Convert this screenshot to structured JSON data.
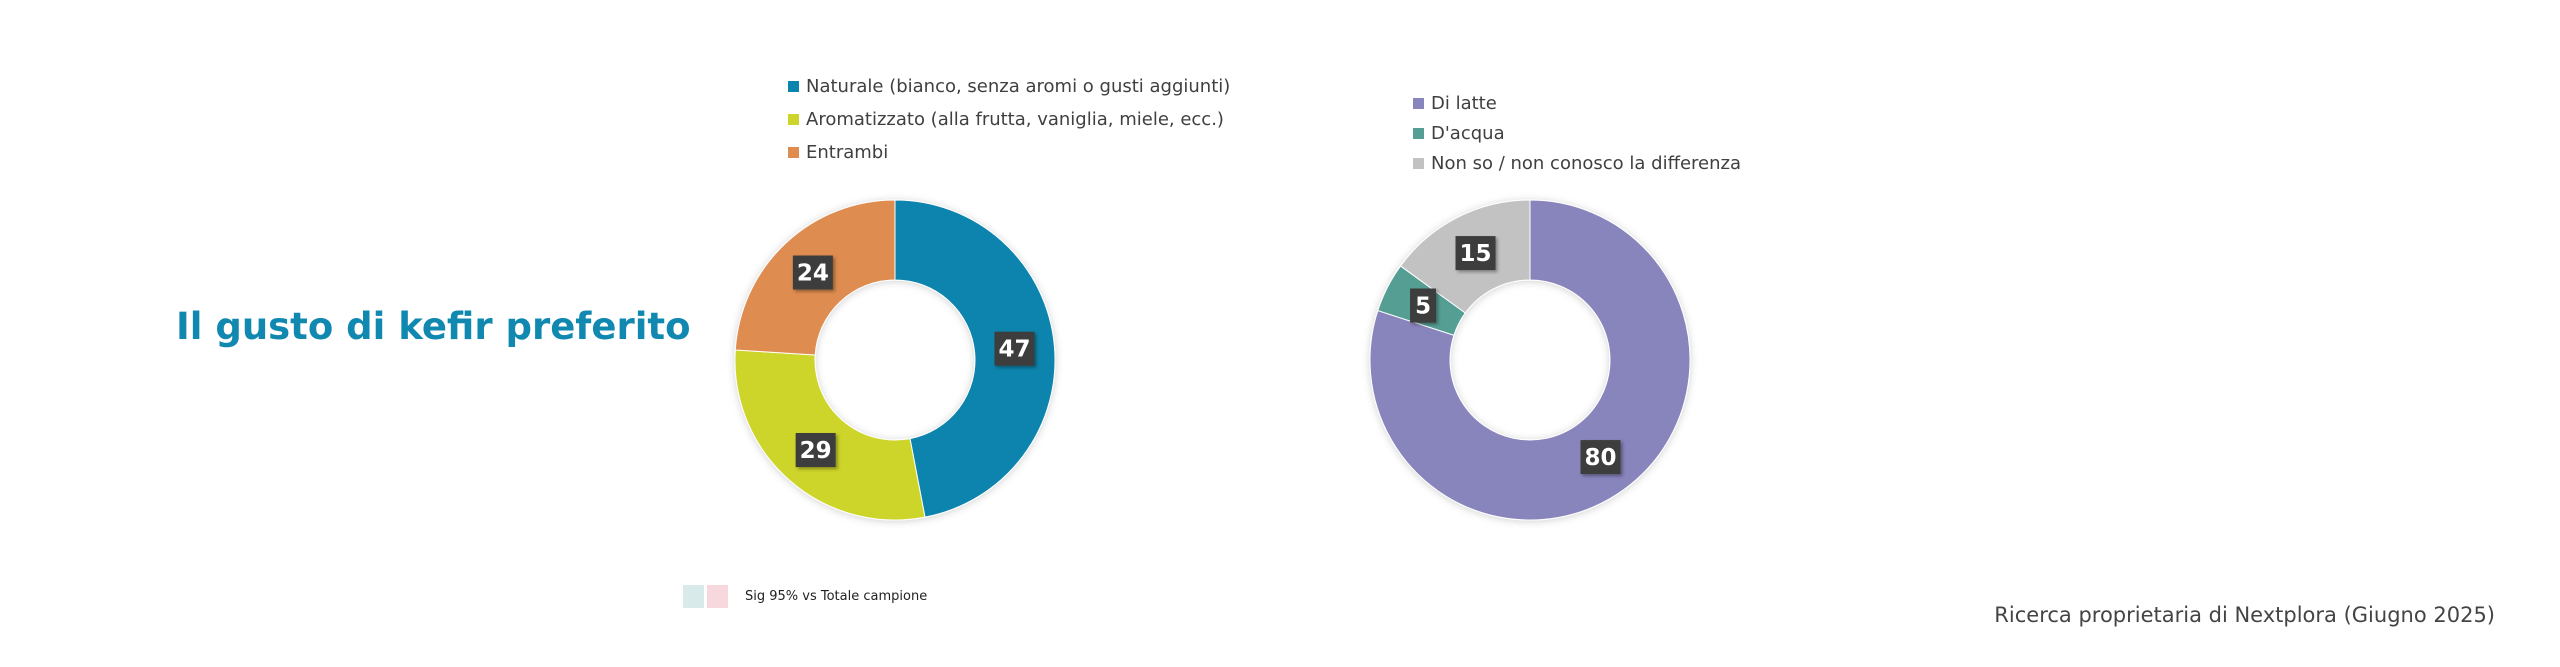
{
  "title": "Il gusto di kefir preferito",
  "chart_data": [
    {
      "type": "pie",
      "variant": "donut",
      "categories": [
        "Naturale (bianco, senza aromi o gusti aggiunti)",
        "Aromatizzato (alla frutta, vaniglia, miele, ecc.)",
        "Entrambi"
      ],
      "values": [
        47,
        29,
        24
      ],
      "colors": [
        "#0a84ad",
        "#cdd42c",
        "#de8c4f"
      ],
      "legend_position": "top"
    },
    {
      "type": "pie",
      "variant": "donut",
      "categories": [
        "Di latte",
        "D'acqua",
        "Non so / non conosco la differenza"
      ],
      "values": [
        80,
        5,
        15
      ],
      "colors": [
        "#8884bc",
        "#559e93",
        "#c2c2c2"
      ],
      "legend_position": "top"
    }
  ],
  "sig_note": {
    "label": "Sig 95% vs Totale campione",
    "colors": [
      "#d8ebea",
      "#f6d8dd"
    ]
  },
  "source": "Ricerca proprietaria di Nextplora (Giugno 2025)",
  "label_box_color": "#3c3c3c"
}
